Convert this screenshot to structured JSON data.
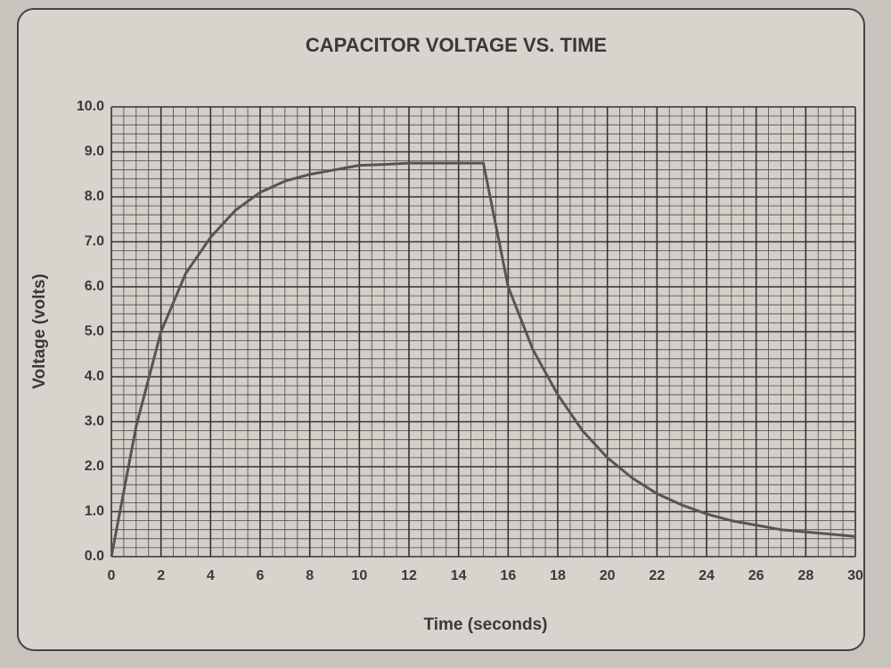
{
  "chart_data": {
    "type": "line",
    "title": "CAPACITOR VOLTAGE VS. TIME",
    "x_label": "Time (seconds)",
    "y_label": "Voltage (volts)",
    "x": [
      0,
      1,
      2,
      3,
      4,
      5,
      6,
      7,
      8,
      9,
      10,
      11,
      12,
      13,
      14,
      15,
      16,
      17,
      18,
      19,
      20,
      21,
      22,
      23,
      24,
      25,
      26,
      27,
      28,
      29,
      30
    ],
    "series": [
      {
        "color": "#555555",
        "values": [
          0,
          2.9,
          5.0,
          6.3,
          7.1,
          7.7,
          8.1,
          8.35,
          8.5,
          8.6,
          8.7,
          8.72,
          8.75,
          8.75,
          8.75,
          8.75,
          6.0,
          4.6,
          3.6,
          2.8,
          2.2,
          1.75,
          1.4,
          1.15,
          0.95,
          0.8,
          0.7,
          0.6,
          0.55,
          0.5,
          0.45
        ]
      }
    ],
    "xlim": [
      0,
      30
    ],
    "xticks": [
      0,
      2,
      4,
      6,
      8,
      10,
      12,
      14,
      16,
      18,
      20,
      22,
      24,
      26,
      28,
      30
    ],
    "ylim": [
      0,
      10
    ],
    "yticks": [
      {
        "value": 0,
        "label": "0.0"
      },
      {
        "value": 1,
        "label": "1.0"
      },
      {
        "value": 2,
        "label": "2.0"
      },
      {
        "value": 3,
        "label": "3.0"
      },
      {
        "value": 4,
        "label": "4.0"
      },
      {
        "value": 5,
        "label": "5.0"
      },
      {
        "value": 6,
        "label": "6.0"
      },
      {
        "value": 7,
        "label": "7.0"
      },
      {
        "value": 8,
        "label": "8.0"
      },
      {
        "value": 9,
        "label": "9.0"
      },
      {
        "value": 10,
        "label": "10.0"
      }
    ],
    "grid": true,
    "minor_divisions": [
      4,
      5
    ]
  }
}
